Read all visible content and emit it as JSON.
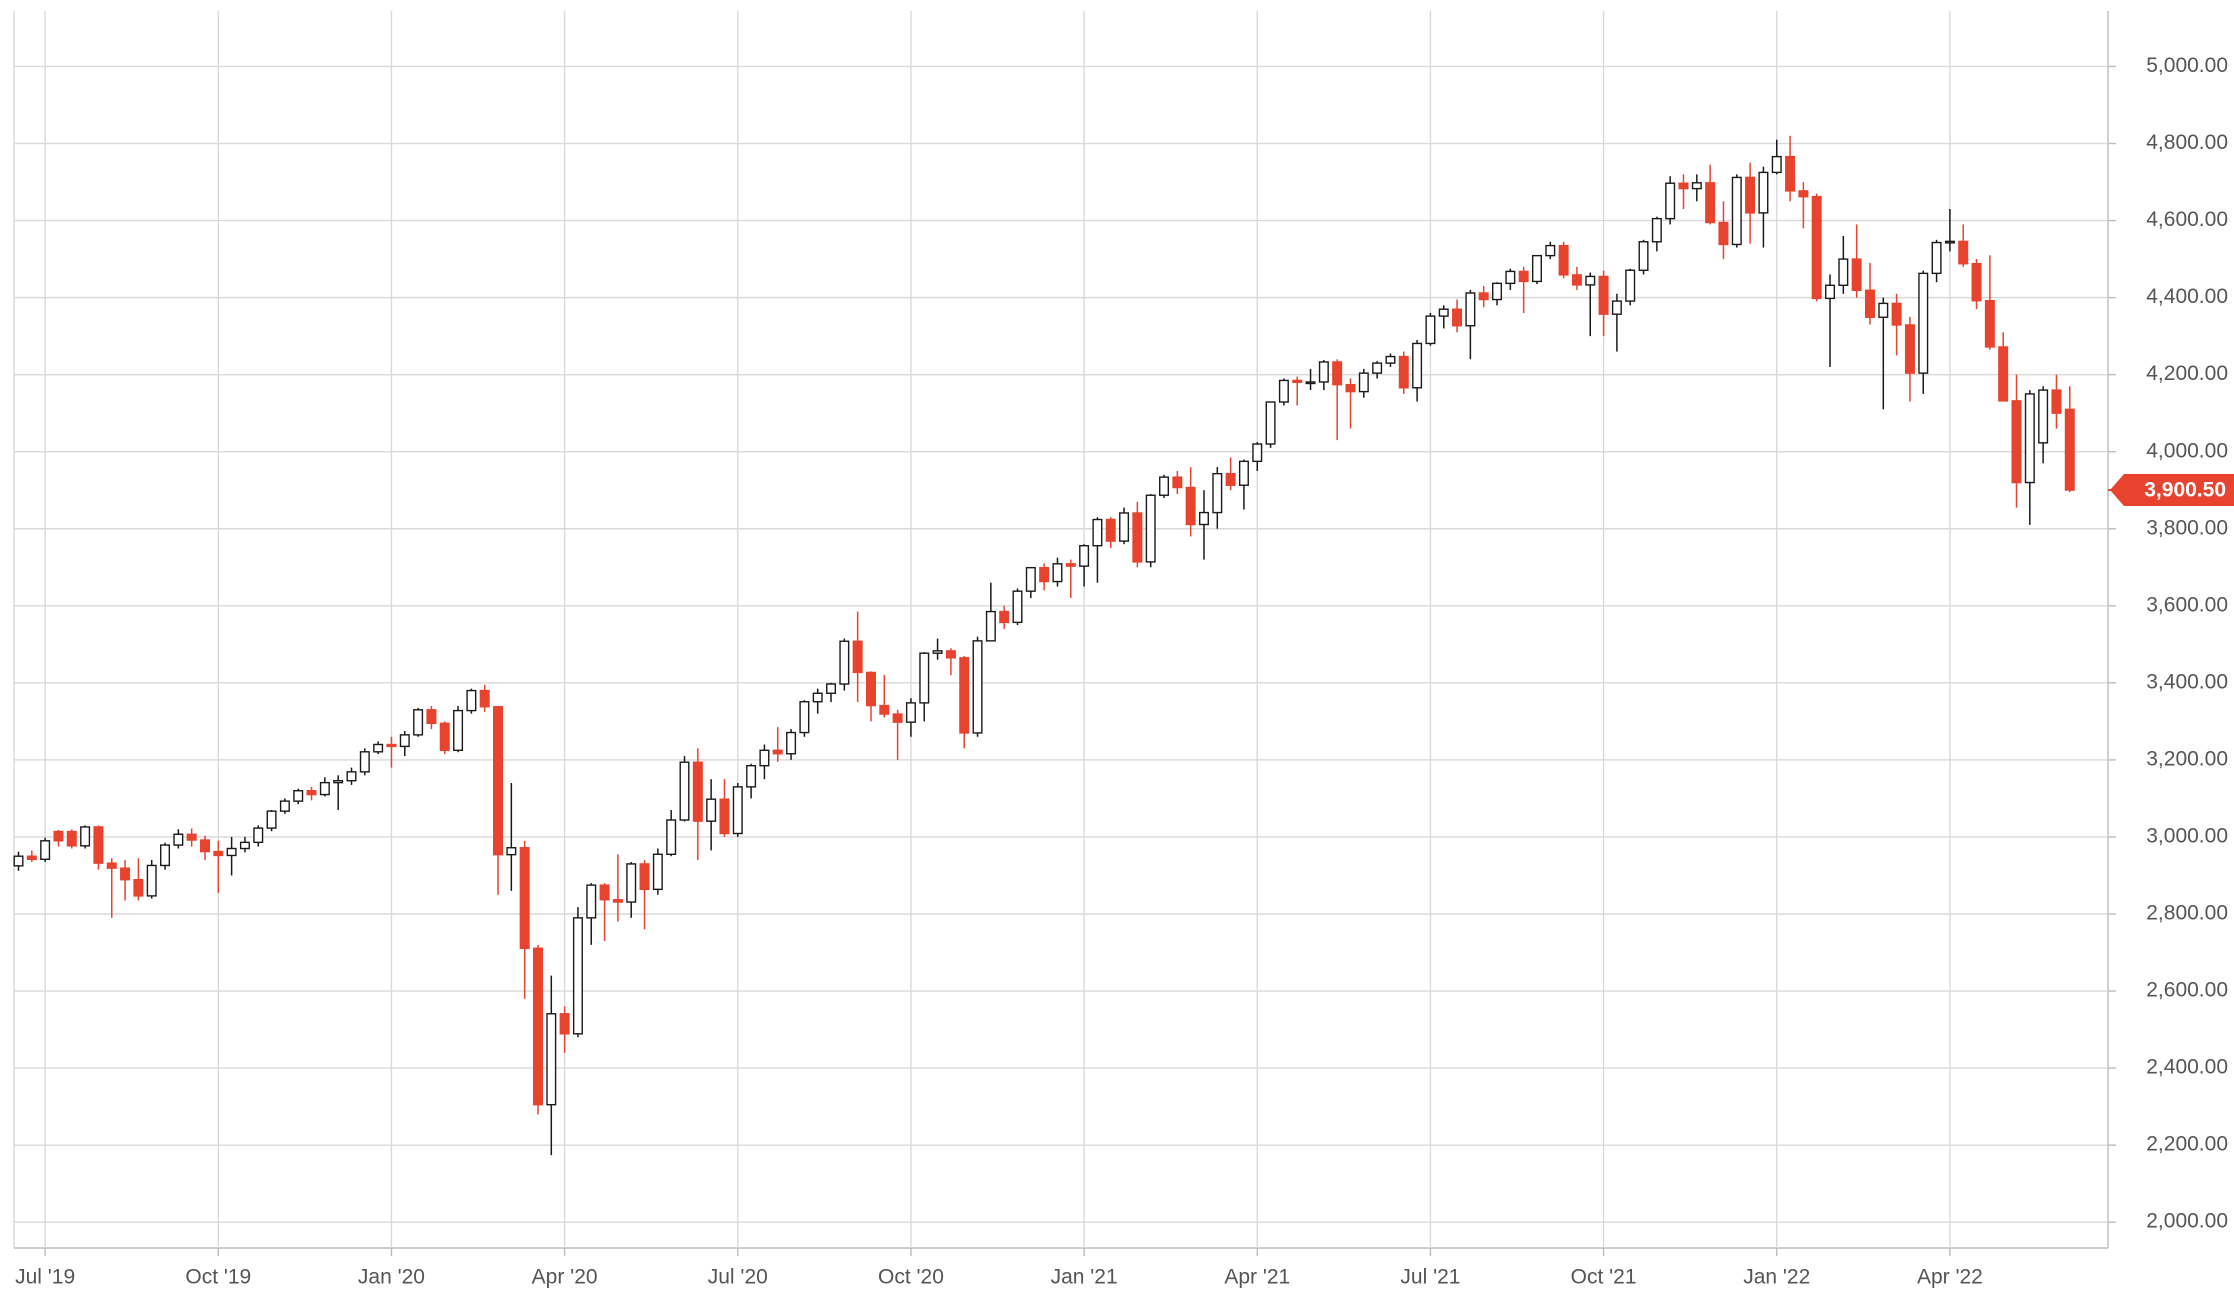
{
  "chart_data": {
    "type": "candlestick",
    "up_color": "#ffffff",
    "up_stroke": "#1a1a1a",
    "down_color": "#e8432f",
    "grid": true,
    "ylim": [
      1933,
      5144
    ],
    "yticks": [
      {
        "value": 2000,
        "label": "2,000.00"
      },
      {
        "value": 2200,
        "label": "2,200.00"
      },
      {
        "value": 2400,
        "label": "2,400.00"
      },
      {
        "value": 2600,
        "label": "2,600.00"
      },
      {
        "value": 2800,
        "label": "2,800.00"
      },
      {
        "value": 3000,
        "label": "3,000.00"
      },
      {
        "value": 3200,
        "label": "3,200.00"
      },
      {
        "value": 3400,
        "label": "3,400.00"
      },
      {
        "value": 3600,
        "label": "3,600.00"
      },
      {
        "value": 3800,
        "label": "3,800.00"
      },
      {
        "value": 4000,
        "label": "4,000.00"
      },
      {
        "value": 4200,
        "label": "4,200.00"
      },
      {
        "value": 4400,
        "label": "4,400.00"
      },
      {
        "value": 4600,
        "label": "4,600.00"
      },
      {
        "value": 4800,
        "label": "4,800.00"
      },
      {
        "value": 5000,
        "label": "5,000.00"
      }
    ],
    "last_price": {
      "value": 3900.5,
      "label": "3,900.50"
    },
    "categories": [
      null,
      null,
      "Jul '19",
      null,
      null,
      null,
      null,
      null,
      null,
      null,
      null,
      null,
      null,
      null,
      null,
      "Oct '19",
      null,
      null,
      null,
      null,
      null,
      null,
      null,
      null,
      null,
      null,
      null,
      null,
      "Jan '20",
      null,
      null,
      null,
      null,
      null,
      null,
      null,
      null,
      null,
      null,
      null,
      null,
      "Apr '20",
      null,
      null,
      null,
      null,
      null,
      null,
      null,
      null,
      null,
      null,
      null,
      null,
      "Jul '20",
      null,
      null,
      null,
      null,
      null,
      null,
      null,
      null,
      null,
      null,
      null,
      null,
      "Oct '20",
      null,
      null,
      null,
      null,
      null,
      null,
      null,
      null,
      null,
      null,
      null,
      null,
      "Jan '21",
      null,
      null,
      null,
      null,
      null,
      null,
      null,
      null,
      null,
      null,
      null,
      null,
      "Apr '21",
      null,
      null,
      null,
      null,
      null,
      null,
      null,
      null,
      null,
      null,
      null,
      null,
      "Jul '21",
      null,
      null,
      null,
      null,
      null,
      null,
      null,
      null,
      null,
      null,
      null,
      null,
      "Oct '21",
      null,
      null,
      null,
      null,
      null,
      null,
      null,
      null,
      null,
      null,
      null,
      null,
      "Jan '22",
      null,
      null,
      null,
      null,
      null,
      null,
      null,
      null,
      null,
      null,
      null,
      null,
      "Apr '22",
      null,
      null,
      null,
      null,
      null,
      null,
      null,
      null,
      null
    ],
    "ohlc": [
      [
        2925,
        2962,
        2912,
        2950
      ],
      [
        2950,
        2965,
        2935,
        2942
      ],
      [
        2942,
        2998,
        2935,
        2990
      ],
      [
        3014,
        3018,
        2975,
        2990
      ],
      [
        3014,
        3020,
        2970,
        2977
      ],
      [
        2977,
        3030,
        2970,
        3026
      ],
      [
        3026,
        3030,
        2915,
        2932
      ],
      [
        2932,
        2945,
        2790,
        2919
      ],
      [
        2919,
        2940,
        2835,
        2889
      ],
      [
        2889,
        2945,
        2835,
        2847
      ],
      [
        2847,
        2940,
        2840,
        2926
      ],
      [
        2926,
        2985,
        2915,
        2979
      ],
      [
        2979,
        3020,
        2970,
        3007
      ],
      [
        3007,
        3022,
        2975,
        2992
      ],
      [
        2992,
        3003,
        2940,
        2962
      ],
      [
        2962,
        2990,
        2855,
        2952
      ],
      [
        2952,
        3000,
        2900,
        2970
      ],
      [
        2970,
        3000,
        2960,
        2986
      ],
      [
        2986,
        3030,
        2975,
        3023
      ],
      [
        3023,
        3070,
        3015,
        3067
      ],
      [
        3067,
        3100,
        3060,
        3093
      ],
      [
        3093,
        3125,
        3085,
        3120
      ],
      [
        3120,
        3130,
        3095,
        3110
      ],
      [
        3110,
        3155,
        3105,
        3141
      ],
      [
        3141,
        3160,
        3070,
        3146
      ],
      [
        3146,
        3180,
        3135,
        3169
      ],
      [
        3169,
        3230,
        3160,
        3221
      ],
      [
        3221,
        3248,
        3215,
        3240
      ],
      [
        3240,
        3260,
        3180,
        3235
      ],
      [
        3235,
        3275,
        3210,
        3265
      ],
      [
        3265,
        3335,
        3260,
        3330
      ],
      [
        3330,
        3340,
        3280,
        3295
      ],
      [
        3295,
        3300,
        3215,
        3225
      ],
      [
        3225,
        3340,
        3220,
        3328
      ],
      [
        3328,
        3385,
        3320,
        3380
      ],
      [
        3380,
        3395,
        3325,
        3338
      ],
      [
        3338,
        3340,
        2850,
        2954
      ],
      [
        2954,
        3140,
        2860,
        2972
      ],
      [
        2972,
        2990,
        2580,
        2711
      ],
      [
        2711,
        2720,
        2280,
        2305
      ],
      [
        2305,
        2640,
        2174,
        2541
      ],
      [
        2541,
        2560,
        2440,
        2489
      ],
      [
        2489,
        2818,
        2480,
        2790
      ],
      [
        2790,
        2880,
        2720,
        2875
      ],
      [
        2875,
        2880,
        2730,
        2837
      ],
      [
        2837,
        2955,
        2780,
        2831
      ],
      [
        2831,
        2935,
        2790,
        2930
      ],
      [
        2930,
        2940,
        2760,
        2864
      ],
      [
        2864,
        2970,
        2850,
        2955
      ],
      [
        2955,
        3070,
        2950,
        3044
      ],
      [
        3044,
        3210,
        3040,
        3194
      ],
      [
        3194,
        3230,
        2940,
        3041
      ],
      [
        3041,
        3150,
        2965,
        3098
      ],
      [
        3098,
        3150,
        3000,
        3009
      ],
      [
        3009,
        3140,
        3000,
        3130
      ],
      [
        3130,
        3190,
        3100,
        3185
      ],
      [
        3185,
        3240,
        3150,
        3225
      ],
      [
        3225,
        3285,
        3195,
        3216
      ],
      [
        3216,
        3280,
        3200,
        3271
      ],
      [
        3271,
        3355,
        3260,
        3351
      ],
      [
        3351,
        3385,
        3320,
        3373
      ],
      [
        3373,
        3400,
        3350,
        3397
      ],
      [
        3397,
        3515,
        3380,
        3508
      ],
      [
        3508,
        3585,
        3350,
        3427
      ],
      [
        3427,
        3430,
        3300,
        3341
      ],
      [
        3341,
        3420,
        3310,
        3319
      ],
      [
        3319,
        3330,
        3200,
        3298
      ],
      [
        3298,
        3360,
        3260,
        3348
      ],
      [
        3348,
        3480,
        3300,
        3477
      ],
      [
        3477,
        3515,
        3460,
        3483
      ],
      [
        3483,
        3490,
        3420,
        3465
      ],
      [
        3465,
        3470,
        3230,
        3270
      ],
      [
        3270,
        3520,
        3260,
        3509
      ],
      [
        3509,
        3660,
        3510,
        3585
      ],
      [
        3585,
        3600,
        3540,
        3557
      ],
      [
        3557,
        3645,
        3550,
        3638
      ],
      [
        3638,
        3700,
        3620,
        3699
      ],
      [
        3699,
        3710,
        3640,
        3663
      ],
      [
        3663,
        3725,
        3650,
        3709
      ],
      [
        3709,
        3720,
        3620,
        3703
      ],
      [
        3703,
        3760,
        3650,
        3756
      ],
      [
        3756,
        3830,
        3660,
        3824
      ],
      [
        3824,
        3830,
        3750,
        3768
      ],
      [
        3768,
        3855,
        3760,
        3841
      ],
      [
        3841,
        3870,
        3700,
        3714
      ],
      [
        3714,
        3890,
        3700,
        3887
      ],
      [
        3887,
        3940,
        3880,
        3934
      ],
      [
        3934,
        3950,
        3890,
        3907
      ],
      [
        3907,
        3960,
        3780,
        3811
      ],
      [
        3811,
        3900,
        3720,
        3842
      ],
      [
        3842,
        3960,
        3800,
        3943
      ],
      [
        3943,
        3985,
        3900,
        3913
      ],
      [
        3913,
        3980,
        3850,
        3975
      ],
      [
        3975,
        4025,
        3950,
        4020
      ],
      [
        4020,
        4130,
        4010,
        4129
      ],
      [
        4129,
        4190,
        4120,
        4185
      ],
      [
        4185,
        4195,
        4120,
        4180
      ],
      [
        4180,
        4215,
        4160,
        4181
      ],
      [
        4181,
        4238,
        4160,
        4233
      ],
      [
        4233,
        4240,
        4030,
        4174
      ],
      [
        4174,
        4190,
        4060,
        4156
      ],
      [
        4156,
        4215,
        4140,
        4204
      ],
      [
        4204,
        4235,
        4190,
        4230
      ],
      [
        4230,
        4255,
        4220,
        4247
      ],
      [
        4247,
        4260,
        4150,
        4166
      ],
      [
        4166,
        4290,
        4130,
        4281
      ],
      [
        4281,
        4360,
        4275,
        4352
      ],
      [
        4352,
        4380,
        4320,
        4370
      ],
      [
        4370,
        4395,
        4310,
        4327
      ],
      [
        4327,
        4420,
        4240,
        4412
      ],
      [
        4412,
        4430,
        4375,
        4395
      ],
      [
        4395,
        4440,
        4380,
        4437
      ],
      [
        4437,
        4475,
        4420,
        4468
      ],
      [
        4468,
        4480,
        4360,
        4442
      ],
      [
        4442,
        4510,
        4435,
        4509
      ],
      [
        4509,
        4545,
        4500,
        4535
      ],
      [
        4535,
        4545,
        4450,
        4459
      ],
      [
        4459,
        4480,
        4420,
        4433
      ],
      [
        4433,
        4465,
        4300,
        4455
      ],
      [
        4455,
        4470,
        4300,
        4357
      ],
      [
        4357,
        4410,
        4260,
        4391
      ],
      [
        4391,
        4475,
        4380,
        4471
      ],
      [
        4471,
        4550,
        4460,
        4545
      ],
      [
        4545,
        4610,
        4520,
        4605
      ],
      [
        4605,
        4715,
        4590,
        4697
      ],
      [
        4697,
        4720,
        4630,
        4683
      ],
      [
        4683,
        4720,
        4650,
        4698
      ],
      [
        4698,
        4745,
        4590,
        4595
      ],
      [
        4595,
        4650,
        4500,
        4538
      ],
      [
        4538,
        4720,
        4530,
        4712
      ],
      [
        4712,
        4750,
        4540,
        4620
      ],
      [
        4620,
        4740,
        4530,
        4725
      ],
      [
        4725,
        4810,
        4720,
        4766
      ],
      [
        4766,
        4820,
        4650,
        4677
      ],
      [
        4677,
        4700,
        4580,
        4662
      ],
      [
        4662,
        4670,
        4390,
        4398
      ],
      [
        4398,
        4460,
        4220,
        4432
      ],
      [
        4432,
        4560,
        4410,
        4500
      ],
      [
        4500,
        4590,
        4400,
        4419
      ],
      [
        4419,
        4490,
        4330,
        4349
      ],
      [
        4349,
        4400,
        4110,
        4385
      ],
      [
        4385,
        4410,
        4250,
        4329
      ],
      [
        4329,
        4350,
        4130,
        4204
      ],
      [
        4204,
        4470,
        4150,
        4463
      ],
      [
        4463,
        4550,
        4440,
        4543
      ],
      [
        4543,
        4630,
        4520,
        4546
      ],
      [
        4546,
        4590,
        4480,
        4488
      ],
      [
        4488,
        4500,
        4370,
        4392
      ],
      [
        4392,
        4510,
        4265,
        4272
      ],
      [
        4272,
        4310,
        4130,
        4132
      ],
      [
        4132,
        4200,
        3855,
        3920
      ],
      [
        3920,
        4160,
        3810,
        4150
      ],
      [
        4023,
        4170,
        3970,
        4160
      ],
      [
        4160,
        4200,
        4060,
        4100
      ],
      [
        4110,
        4170,
        3895,
        3900.5
      ]
    ]
  }
}
